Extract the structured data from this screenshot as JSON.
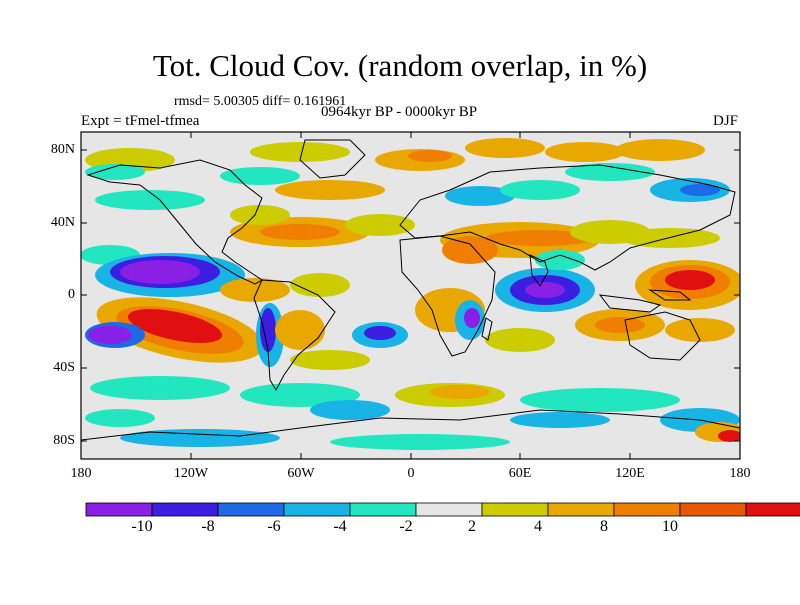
{
  "title": "Tot. Cloud Cov. (random overlap, in %)",
  "stats": "rmsd= 5.00305 diff= 0.161961",
  "period": "0964kyr BP - 0000kyr BP",
  "experiment": "Expt = tFmel-tfmea",
  "season": "DJF",
  "y_ticks": [
    "80N",
    "40N",
    "0",
    "40S",
    "80S"
  ],
  "x_ticks": [
    "180",
    "120W",
    "60W",
    "0",
    "60E",
    "120E",
    "180"
  ],
  "colorbar": {
    "labels": [
      "-10",
      "-8",
      "-6",
      "-4",
      "-2",
      "2",
      "4",
      "8",
      "10"
    ],
    "colors": [
      "#8a1fe6",
      "#3b1ee0",
      "#1e6ae6",
      "#18b4e6",
      "#22e6c0",
      "#e6e6e6",
      "#cccc00",
      "#e8a800",
      "#f07e00",
      "#e85800",
      "#e01010"
    ]
  }
}
